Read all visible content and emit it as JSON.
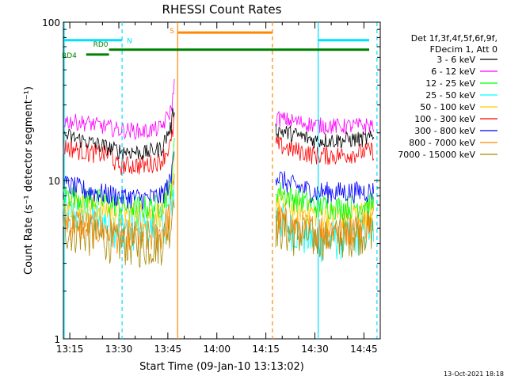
{
  "chart_data": {
    "type": "line",
    "title": "RHESSI Count Rates",
    "xlabel": "Start Time (09-Jan-10 13:13:02)",
    "ylabel": "Count Rate (s⁻¹ detector segment⁻¹)",
    "yscale": "log",
    "ylim": [
      1,
      100
    ],
    "xlim": [
      "13:13:02",
      "14:50:00"
    ],
    "x_tick_labels": [
      "13:15",
      "13:30",
      "13:45",
      "14:00",
      "14:15",
      "14:30",
      "14:45"
    ],
    "x_tick_minutes": [
      15,
      30,
      45,
      60,
      75,
      90,
      105
    ],
    "y_tick_labels": [
      "1",
      "10",
      "100"
    ],
    "y_tick_values": [
      1,
      10,
      100
    ],
    "legend_position": "right",
    "legend_header": [
      "Det 1f,3f,4f,5f,6f,9f,",
      "FDecim 1, Att 0"
    ],
    "gap": [
      "13:48",
      "14:18"
    ],
    "series": [
      {
        "name": "3 - 6 keV",
        "color": "#000000",
        "pre": [
          [
            "13:13",
            19.5
          ],
          [
            "13:21",
            17.5
          ],
          [
            "13:30",
            15.5
          ],
          [
            "13:38",
            15.0
          ],
          [
            "13:43",
            16.0
          ],
          [
            "13:46",
            22.0
          ],
          [
            "13:47",
            30.0
          ]
        ],
        "post": [
          [
            "14:18",
            21.0
          ],
          [
            "14:22",
            20.0
          ],
          [
            "14:30",
            18.0
          ],
          [
            "14:38",
            18.0
          ],
          [
            "14:48",
            18.5
          ]
        ]
      },
      {
        "name": "6 - 12 keV",
        "color": "#ff00ff",
        "pre": [
          [
            "13:13",
            24.0
          ],
          [
            "13:21",
            23.0
          ],
          [
            "13:30",
            21.0
          ],
          [
            "13:38",
            20.5
          ],
          [
            "13:43",
            21.5
          ],
          [
            "13:46",
            28.0
          ],
          [
            "13:47",
            40.0
          ]
        ],
        "post": [
          [
            "14:18",
            25.0
          ],
          [
            "14:22",
            24.0
          ],
          [
            "14:30",
            22.5
          ],
          [
            "14:38",
            22.0
          ],
          [
            "14:48",
            22.5
          ]
        ]
      },
      {
        "name": "12 - 25 keV",
        "color": "#00ff00",
        "pre": [
          [
            "13:13",
            8.2
          ],
          [
            "13:21",
            7.8
          ],
          [
            "13:30",
            7.0
          ],
          [
            "13:38",
            6.8
          ],
          [
            "13:43",
            7.0
          ],
          [
            "13:46",
            9.5
          ],
          [
            "13:47",
            17.0
          ]
        ],
        "post": [
          [
            "14:18",
            8.8
          ],
          [
            "14:22",
            8.0
          ],
          [
            "14:30",
            7.0
          ],
          [
            "14:38",
            6.8
          ],
          [
            "14:48",
            7.2
          ]
        ]
      },
      {
        "name": "25 - 50 keV",
        "color": "#00ffff",
        "pre": [
          [
            "13:13",
            6.3
          ],
          [
            "13:21",
            5.9
          ],
          [
            "13:30",
            5.2
          ],
          [
            "13:38",
            5.0
          ],
          [
            "13:43",
            5.3
          ],
          [
            "13:46",
            7.0
          ],
          [
            "13:47",
            10.0
          ]
        ],
        "post": [
          [
            "14:18",
            6.2
          ],
          [
            "14:22",
            5.2
          ],
          [
            "14:30",
            4.2
          ],
          [
            "14:38",
            4.4
          ],
          [
            "14:48",
            5.0
          ]
        ]
      },
      {
        "name": "50 - 100 keV",
        "color": "#ffcc00",
        "pre": [
          [
            "13:13",
            7.5
          ],
          [
            "13:21",
            7.0
          ],
          [
            "13:30",
            6.3
          ],
          [
            "13:38",
            6.1
          ],
          [
            "13:43",
            6.3
          ],
          [
            "13:46",
            8.5
          ],
          [
            "13:47",
            14.0
          ]
        ],
        "post": [
          [
            "14:18",
            7.6
          ],
          [
            "14:22",
            7.0
          ],
          [
            "14:30",
            6.2
          ],
          [
            "14:38",
            6.0
          ],
          [
            "14:48",
            6.4
          ]
        ]
      },
      {
        "name": "100 - 300 keV",
        "color": "#ff0000",
        "pre": [
          [
            "13:13",
            16.5
          ],
          [
            "13:21",
            15.0
          ],
          [
            "13:28",
            14.5
          ],
          [
            "13:29",
            12.5
          ],
          [
            "13:38",
            12.5
          ],
          [
            "13:43",
            13.5
          ],
          [
            "13:46",
            17.0
          ],
          [
            "13:47",
            25.0
          ]
        ],
        "post": [
          [
            "14:18",
            17.0
          ],
          [
            "14:22",
            16.0
          ],
          [
            "14:30",
            14.5
          ],
          [
            "14:38",
            14.5
          ],
          [
            "14:48",
            15.5
          ]
        ]
      },
      {
        "name": "300 - 800 keV",
        "color": "#0000ff",
        "pre": [
          [
            "13:13",
            9.5
          ],
          [
            "13:21",
            8.6
          ],
          [
            "13:30",
            8.0
          ],
          [
            "13:38",
            7.7
          ],
          [
            "13:43",
            8.0
          ],
          [
            "13:46",
            10.0
          ],
          [
            "13:47",
            18.0
          ]
        ],
        "post": [
          [
            "14:18",
            10.8
          ],
          [
            "14:22",
            9.5
          ],
          [
            "14:30",
            8.5
          ],
          [
            "14:38",
            8.5
          ],
          [
            "14:48",
            8.6
          ]
        ]
      },
      {
        "name": "800 - 7000 keV",
        "color": "#ff8800",
        "pre": [
          [
            "13:13",
            5.7
          ],
          [
            "13:21",
            5.2
          ],
          [
            "13:30",
            4.6
          ],
          [
            "13:38",
            4.4
          ],
          [
            "13:43",
            4.7
          ],
          [
            "13:46",
            6.5
          ],
          [
            "13:47",
            12.0
          ]
        ],
        "post": [
          [
            "14:18",
            5.9
          ],
          [
            "14:22",
            5.3
          ],
          [
            "14:30",
            4.9
          ],
          [
            "14:38",
            5.0
          ],
          [
            "14:48",
            5.6
          ]
        ]
      },
      {
        "name": "7000 - 15000 keV",
        "color": "#aa8800",
        "pre": [
          [
            "13:13",
            5.0
          ],
          [
            "13:21",
            4.6
          ],
          [
            "13:30",
            4.1
          ],
          [
            "13:38",
            3.9
          ],
          [
            "13:43",
            4.1
          ],
          [
            "13:46",
            5.5
          ],
          [
            "13:47",
            9.0
          ]
        ],
        "post": [
          [
            "14:18",
            5.2
          ],
          [
            "14:22",
            4.7
          ],
          [
            "14:30",
            4.4
          ],
          [
            "14:38",
            4.5
          ],
          [
            "14:48",
            5.0
          ]
        ]
      }
    ],
    "vertical_markers": [
      {
        "time": "13:13:02",
        "color": "#00e0ff",
        "style": "solid"
      },
      {
        "time": "13:31",
        "color": "#00e0ff",
        "style": "dashed"
      },
      {
        "time": "13:48",
        "color": "#ff8800",
        "style": "solid"
      },
      {
        "time": "14:17",
        "color": "#ff8800",
        "style": "dashed"
      },
      {
        "time": "14:31",
        "color": "#00e0ff",
        "style": "solid"
      },
      {
        "time": "14:49",
        "color": "#00e0ff",
        "style": "dashed"
      }
    ],
    "flag_bars": [
      {
        "label": "N",
        "color": "#00e0ff",
        "segments": [
          [
            "13:13",
            "13:31"
          ],
          [
            "14:31",
            "14:49"
          ]
        ],
        "value": 77
      },
      {
        "label": "S",
        "color": "#ff8800",
        "segments": [
          [
            "13:48",
            "14:17"
          ]
        ],
        "value": 86
      },
      {
        "label": "RD0",
        "color": "#008000",
        "segments": [
          [
            "13:27",
            "14:49"
          ]
        ],
        "value": 67
      },
      {
        "label": "RD4",
        "color": "#008000",
        "segments": [
          [
            "13:20",
            "13:27"
          ]
        ],
        "value": 62.5
      }
    ]
  },
  "footer": {
    "timestamp": "13-Oct-2021 18:18"
  }
}
